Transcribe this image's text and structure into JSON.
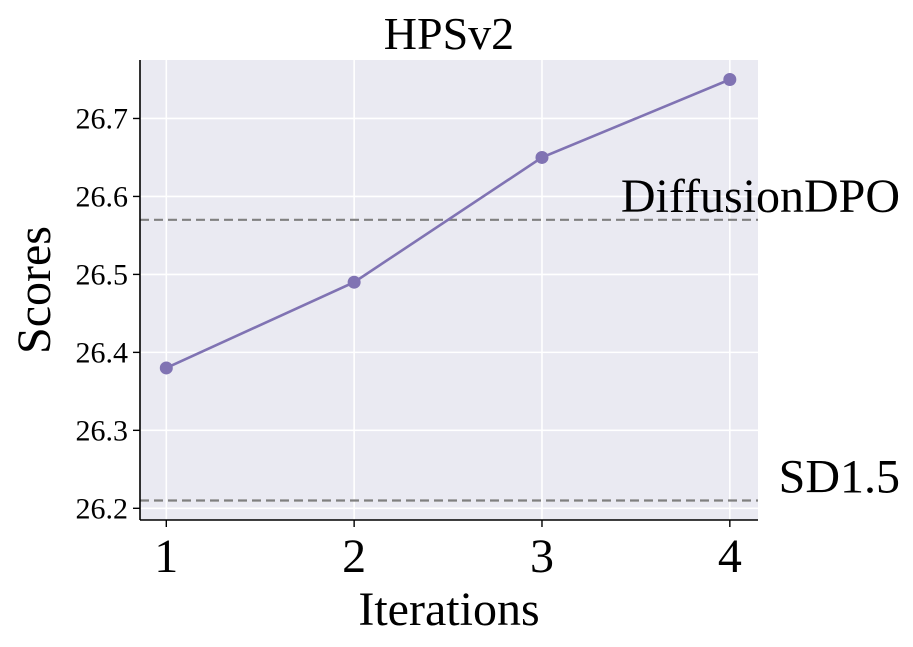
{
  "chart_data": {
    "type": "line",
    "title": "HPSv2",
    "xlabel": "Iterations",
    "ylabel": "Scores",
    "x": [
      1,
      2,
      3,
      4
    ],
    "xticks": [
      "1",
      "2",
      "3",
      "4"
    ],
    "yticks": [
      "26.2",
      "26.3",
      "26.4",
      "26.5",
      "26.6",
      "26.7"
    ],
    "ytick_values": [
      26.2,
      26.3,
      26.4,
      26.5,
      26.6,
      26.7
    ],
    "xlim": [
      0.86,
      4.15
    ],
    "ylim": [
      26.185,
      26.775
    ],
    "grid": true,
    "series": [
      {
        "values": [
          26.38,
          26.49,
          26.65,
          26.75
        ],
        "color": "#8073b3",
        "marker": "circle"
      }
    ],
    "reference_lines": [
      {
        "label": "DiffusionDPO",
        "y": 26.57,
        "style": "dashed",
        "color": "#808080"
      },
      {
        "label": "SD1.5",
        "y": 26.21,
        "style": "dashed",
        "color": "#808080"
      }
    ],
    "colors": {
      "plot_background": "#eaeaf2",
      "grid": "#ffffff",
      "line": "#8073b3",
      "reference": "#808080"
    }
  }
}
